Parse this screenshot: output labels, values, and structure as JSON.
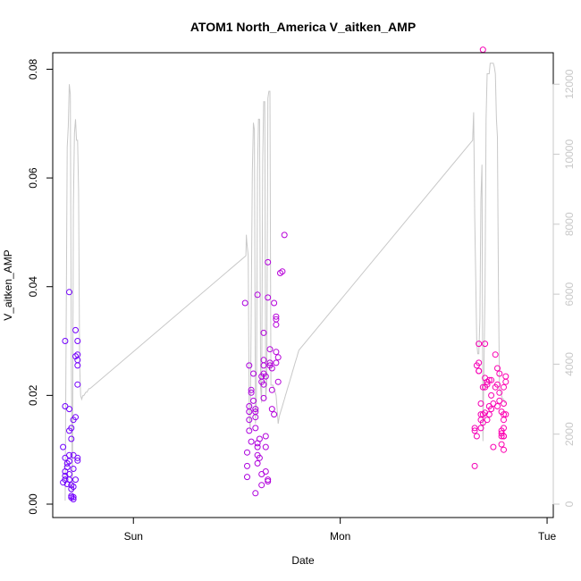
{
  "chart_data": {
    "type": "scatter",
    "title": "ATOM1 North_America V_aitken_AMP",
    "xlabel": "Date",
    "ylabel": "V_aitken_AMP",
    "xlim": [
      -0.39,
      2.03
    ],
    "ylim": [
      0,
      0.0855
    ],
    "y2lim": [
      0,
      12900
    ],
    "x_ticks": [
      {
        "label": "Sun",
        "value": 0
      },
      {
        "label": "Mon",
        "value": 1
      },
      {
        "label": "Tue",
        "value": 2
      }
    ],
    "y_ticks": [
      {
        "label": "0.00",
        "value": 0
      },
      {
        "label": "0.02",
        "value": 0.02
      },
      {
        "label": "0.04",
        "value": 0.04
      },
      {
        "label": "0.06",
        "value": 0.06
      },
      {
        "label": "0.08",
        "value": 0.08
      }
    ],
    "y2_ticks": [
      {
        "label": "0",
        "value": 0
      },
      {
        "label": "2000",
        "value": 2000
      },
      {
        "label": "4000",
        "value": 4000
      },
      {
        "label": "6000",
        "value": 6000
      },
      {
        "label": "8000",
        "value": 8000
      },
      {
        "label": "10000",
        "value": 10000
      },
      {
        "label": "12000",
        "value": 12000
      }
    ],
    "grid": false,
    "colors": {
      "line": "#c8c8c8",
      "point_start": "#7000ff",
      "point_end": "#ff00b0"
    },
    "secondary_line": {
      "x": [
        -0.33,
        -0.32,
        -0.315,
        -0.31,
        -0.305,
        -0.3,
        -0.295,
        -0.29,
        -0.285,
        -0.28,
        -0.275,
        -0.27,
        -0.265,
        -0.26,
        -0.255,
        -0.25,
        -0.245,
        -0.24,
        -0.235,
        -0.23,
        -0.225,
        -0.22,
        -0.215,
        -0.21,
        0.544,
        0.546,
        0.548,
        0.555,
        0.56,
        0.565,
        0.575,
        0.58,
        0.585,
        0.59,
        0.595,
        0.6,
        0.605,
        0.61,
        0.615,
        0.62,
        0.625,
        0.63,
        0.635,
        0.64,
        0.645,
        0.65,
        0.655,
        0.66,
        0.665,
        0.67,
        0.675,
        0.68,
        0.685,
        0.69,
        0.695,
        0.7,
        0.705,
        0.71,
        0.715,
        0.72,
        0.725,
        0.73,
        0.735,
        0.74,
        0.745,
        0.75,
        0.755,
        0.76,
        0.765,
        0.77,
        0.775,
        0.78,
        0.785,
        0.79,
        0.795,
        0.8,
        1.64,
        1.645,
        1.65,
        1.655,
        1.66,
        1.665,
        1.67,
        1.675,
        1.68,
        1.685,
        1.69,
        1.695,
        1.7,
        1.705,
        1.71,
        1.715,
        1.72,
        1.725,
        1.73,
        1.735,
        1.74,
        1.745,
        1.75,
        1.755,
        1.76,
        1.765,
        1.77,
        1.775,
        1.78,
        1.785,
        1.79,
        1.795,
        1.8
      ],
      "y": [
        100,
        10200,
        10800,
        12000,
        11700,
        4000,
        300,
        8500,
        10600,
        11000,
        10400,
        10400,
        9000,
        4000,
        3100,
        3000,
        3100,
        3100,
        3150,
        3200,
        3200,
        3250,
        3300,
        3300,
        7100,
        7700,
        7500,
        7100,
        2500,
        2100,
        9500,
        10900,
        10700,
        2300,
        3000,
        9500,
        11000,
        11000,
        3300,
        2900,
        9800,
        11500,
        11500,
        3000,
        3500,
        11600,
        11800,
        11800,
        3400,
        3400,
        3400,
        3300,
        3200,
        3100,
        2700,
        2300,
        2500,
        2600,
        2700,
        2800,
        2900,
        3000,
        3100,
        3200,
        3300,
        3400,
        3500,
        3600,
        3700,
        3800,
        3900,
        4000,
        4100,
        4200,
        4300,
        4400,
        10400,
        11200,
        8200,
        6500,
        4600,
        4300,
        4300,
        5300,
        8700,
        9700,
        1800,
        4000,
        6000,
        11000,
        12300,
        12300,
        12300,
        12600,
        12600,
        12600,
        12600,
        12500,
        12300,
        11000,
        10500,
        6000,
        3300,
        3200,
        3100,
        3000,
        3000,
        2900,
        2900
      ]
    },
    "points": [
      [
        -0.33,
        0.0045
      ],
      [
        -0.33,
        0.006
      ],
      [
        -0.32,
        0.0075
      ],
      [
        -0.34,
        0.0105
      ],
      [
        -0.33,
        0.0085
      ],
      [
        -0.31,
        0.009
      ],
      [
        -0.32,
        0.0068
      ],
      [
        -0.34,
        0.004
      ],
      [
        -0.33,
        0.0052
      ],
      [
        -0.32,
        0.0037
      ],
      [
        -0.3,
        0.0028
      ],
      [
        -0.31,
        0.0079
      ],
      [
        -0.33,
        0.018
      ],
      [
        -0.33,
        0.03
      ],
      [
        -0.31,
        0.039
      ],
      [
        -0.31,
        0.0135
      ],
      [
        -0.3,
        0.014
      ],
      [
        -0.31,
        0.0175
      ],
      [
        -0.29,
        0.0155
      ],
      [
        -0.28,
        0.016
      ],
      [
        -0.3,
        0.012
      ],
      [
        -0.29,
        0.009
      ],
      [
        -0.27,
        0.008
      ],
      [
        -0.27,
        0.0085
      ],
      [
        -0.29,
        0.0065
      ],
      [
        -0.3,
        0.0035
      ],
      [
        -0.29,
        0.0032
      ],
      [
        -0.3,
        0.0015
      ],
      [
        -0.3,
        0.0012
      ],
      [
        -0.29,
        0.0009
      ],
      [
        -0.29,
        0.0013
      ],
      [
        -0.31,
        0.0055
      ],
      [
        -0.31,
        0.0045
      ],
      [
        -0.28,
        0.0045
      ],
      [
        -0.28,
        0.032
      ],
      [
        -0.27,
        0.0275
      ],
      [
        -0.28,
        0.0272
      ],
      [
        -0.27,
        0.0265
      ],
      [
        -0.27,
        0.0255
      ],
      [
        -0.27,
        0.03
      ],
      [
        -0.27,
        0.022
      ],
      [
        0.54,
        0.037
      ],
      [
        0.55,
        0.0095
      ],
      [
        0.55,
        0.007
      ],
      [
        0.55,
        0.005
      ],
      [
        0.56,
        0.017
      ],
      [
        0.56,
        0.018
      ],
      [
        0.57,
        0.021
      ],
      [
        0.57,
        0.0205
      ],
      [
        0.56,
        0.0255
      ],
      [
        0.56,
        0.0155
      ],
      [
        0.56,
        0.0135
      ],
      [
        0.57,
        0.0115
      ],
      [
        0.58,
        0.024
      ],
      [
        0.58,
        0.019
      ],
      [
        0.59,
        0.017
      ],
      [
        0.59,
        0.016
      ],
      [
        0.59,
        0.0175
      ],
      [
        0.59,
        0.014
      ],
      [
        0.6,
        0.0112
      ],
      [
        0.6,
        0.0105
      ],
      [
        0.6,
        0.009
      ],
      [
        0.6,
        0.0075
      ],
      [
        0.61,
        0.012
      ],
      [
        0.61,
        0.0085
      ],
      [
        0.62,
        0.0055
      ],
      [
        0.62,
        0.0035
      ],
      [
        0.59,
        0.002
      ],
      [
        0.6,
        0.0385
      ],
      [
        0.62,
        0.0225
      ],
      [
        0.62,
        0.0235
      ],
      [
        0.63,
        0.0265
      ],
      [
        0.63,
        0.0255
      ],
      [
        0.63,
        0.024
      ],
      [
        0.63,
        0.0315
      ],
      [
        0.63,
        0.022
      ],
      [
        0.63,
        0.0195
      ],
      [
        0.64,
        0.0235
      ],
      [
        0.64,
        0.0125
      ],
      [
        0.64,
        0.0105
      ],
      [
        0.64,
        0.006
      ],
      [
        0.65,
        0.0045
      ],
      [
        0.65,
        0.0042
      ],
      [
        0.65,
        0.038
      ],
      [
        0.65,
        0.0445
      ],
      [
        0.66,
        0.0285
      ],
      [
        0.66,
        0.026
      ],
      [
        0.66,
        0.0255
      ],
      [
        0.67,
        0.025
      ],
      [
        0.67,
        0.021
      ],
      [
        0.67,
        0.0175
      ],
      [
        0.68,
        0.0165
      ],
      [
        0.68,
        0.037
      ],
      [
        0.69,
        0.0345
      ],
      [
        0.69,
        0.034
      ],
      [
        0.69,
        0.033
      ],
      [
        0.69,
        0.028
      ],
      [
        0.69,
        0.026
      ],
      [
        0.7,
        0.027
      ],
      [
        0.7,
        0.0225
      ],
      [
        0.71,
        0.0425
      ],
      [
        0.72,
        0.0428
      ],
      [
        0.73,
        0.0495
      ],
      [
        1.65,
        0.014
      ],
      [
        1.65,
        0.0135
      ],
      [
        1.65,
        0.007
      ],
      [
        1.66,
        0.0255
      ],
      [
        1.66,
        0.0125
      ],
      [
        1.67,
        0.026
      ],
      [
        1.67,
        0.0245
      ],
      [
        1.67,
        0.0245
      ],
      [
        1.67,
        0.0295
      ],
      [
        1.68,
        0.0185
      ],
      [
        1.68,
        0.0165
      ],
      [
        1.68,
        0.0155
      ],
      [
        1.68,
        0.014
      ],
      [
        1.69,
        0.0215
      ],
      [
        1.69,
        0.0165
      ],
      [
        1.69,
        0.015
      ],
      [
        1.7,
        0.0168
      ],
      [
        1.7,
        0.0232
      ],
      [
        1.7,
        0.0215
      ],
      [
        1.7,
        0.0295
      ],
      [
        1.71,
        0.0225
      ],
      [
        1.71,
        0.022
      ],
      [
        1.71,
        0.0155
      ],
      [
        1.72,
        0.018
      ],
      [
        1.72,
        0.0165
      ],
      [
        1.73,
        0.02
      ],
      [
        1.73,
        0.0175
      ],
      [
        1.74,
        0.0105
      ],
      [
        1.74,
        0.0185
      ],
      [
        1.75,
        0.0275
      ],
      [
        1.75,
        0.0215
      ],
      [
        1.76,
        0.025
      ],
      [
        1.76,
        0.022
      ],
      [
        1.76,
        0.018
      ],
      [
        1.77,
        0.0205
      ],
      [
        1.77,
        0.019
      ],
      [
        1.78,
        0.017
      ],
      [
        1.78,
        0.0135
      ],
      [
        1.78,
        0.0125
      ],
      [
        1.78,
        0.013
      ],
      [
        1.79,
        0.0155
      ],
      [
        1.79,
        0.0165
      ],
      [
        1.8,
        0.0225
      ],
      [
        1.8,
        0.0235
      ],
      [
        1.8,
        0.0165
      ],
      [
        1.79,
        0.014
      ],
      [
        1.77,
        0.024
      ],
      [
        1.79,
        0.0215
      ],
      [
        1.79,
        0.0125
      ],
      [
        1.79,
        0.0125
      ],
      [
        1.79,
        0.01
      ],
      [
        1.78,
        0.011
      ],
      [
        1.79,
        0.0185
      ],
      [
        1.72,
        0.0228
      ],
      [
        1.73,
        0.0228
      ],
      [
        1.69,
        0.0836
      ]
    ]
  }
}
